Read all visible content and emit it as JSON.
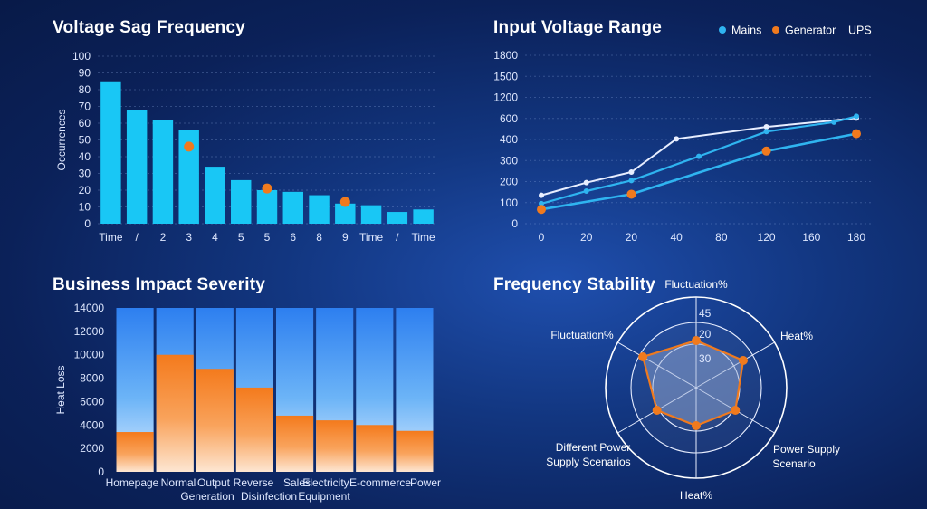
{
  "panels": {
    "sag": {
      "title": "Voltage Sag Frequency"
    },
    "voltage": {
      "title": "Input Voltage Range"
    },
    "impact": {
      "title": "Business Impact Severity"
    },
    "stability": {
      "title": "Frequency Stability"
    }
  },
  "colors": {
    "bar_cyan": "#19c7f5",
    "marker_orange": "#f07a1e",
    "mains": "#2fb4f0",
    "generator": "#f07a1e",
    "ups": "#e8eeff",
    "impact_blue": "#3d8ff0",
    "impact_orange": "#f7862a"
  },
  "chart_data": [
    {
      "type": "bar",
      "title": "Voltage Sag Frequency",
      "xlabel": "",
      "ylabel": "Occurrences",
      "ylim": [
        0,
        100
      ],
      "yticks": [
        0,
        10,
        20,
        30,
        40,
        50,
        60,
        70,
        80,
        90,
        100
      ],
      "categories": [
        "Time",
        "/",
        "2",
        "3",
        "4",
        "5",
        "5",
        "6",
        "8",
        "9",
        "Time",
        "/",
        "Time"
      ],
      "tick_labels": [
        "Time",
        "/",
        "2",
        "3",
        "4",
        "5",
        "5",
        "6",
        "8",
        "9",
        "Time",
        "/",
        "Time"
      ],
      "values": [
        85,
        68,
        62,
        56,
        34,
        26,
        20,
        19,
        17,
        12,
        11,
        7,
        8.5
      ],
      "markers": [
        {
          "index": 3,
          "value": 46
        },
        {
          "index": 6,
          "value": 21
        },
        {
          "index": 9,
          "value": 13
        }
      ],
      "grid": true
    },
    {
      "type": "line",
      "title": "Input Voltage Range",
      "xlabel": "",
      "ylabel": "",
      "ylim": [
        0,
        1800
      ],
      "ytick_labels": [
        "0",
        "100",
        "200",
        "300",
        "400",
        "600",
        "1200",
        "1500",
        "1800"
      ],
      "x": [
        "0",
        "20",
        "20",
        "40",
        "80",
        "120",
        "160",
        "180"
      ],
      "legend": {
        "position": "top-right",
        "entries": [
          "Mains",
          "Generator",
          "UPS"
        ]
      },
      "series": [
        {
          "name": "UPS",
          "points": [
            [
              0,
              135
            ],
            [
              1,
              195
            ],
            [
              2,
              245
            ],
            [
              3,
              405
            ],
            [
              5,
              520
            ],
            [
              7,
              610
            ]
          ]
        },
        {
          "name": "Mains",
          "points": [
            [
              0,
              95
            ],
            [
              1,
              155
            ],
            [
              2,
              205
            ],
            [
              3.5,
              320
            ],
            [
              5,
              475
            ],
            [
              6.5,
              565
            ],
            [
              7,
              660
            ]
          ]
        },
        {
          "name": "Generator",
          "points": [
            [
              0,
              68
            ],
            [
              2,
              140
            ],
            [
              5,
              345
            ],
            [
              7,
              455
            ]
          ]
        }
      ],
      "grid": true
    },
    {
      "type": "bar",
      "title": "Business Impact Severity",
      "xlabel": "",
      "ylabel": "Heat Loss",
      "ylim": [
        0,
        14000
      ],
      "yticks": [
        0,
        2000,
        4000,
        6000,
        8000,
        10000,
        12000,
        14000
      ],
      "categories": [
        "Homepage",
        "Normal",
        "Output",
        "Reverse",
        "Sales",
        "Electricity",
        "E-commerce",
        "Power"
      ],
      "category_sublabels": [
        "Generation",
        "Disinfection",
        "Equipment"
      ],
      "series": [
        {
          "name": "",
          "values": [
            14000,
            14000,
            14000,
            14000,
            14000,
            14000,
            14000,
            14000
          ]
        },
        {
          "name": "",
          "values": [
            3400,
            10000,
            8800,
            7200,
            4800,
            4400,
            4000,
            3500
          ]
        }
      ],
      "grid": true
    },
    {
      "type": "radar",
      "title": "Frequency Stability",
      "axes": [
        "Fluctuation%",
        "Heat%",
        "Power Supply Scenario",
        "Heat%",
        "Different Power Supply Scenarios",
        "Fluctuation%"
      ],
      "ring_labels": [
        "45",
        "20",
        "30"
      ],
      "values": [
        0.52,
        0.6,
        0.5,
        0.42,
        0.5,
        0.68
      ]
    }
  ]
}
